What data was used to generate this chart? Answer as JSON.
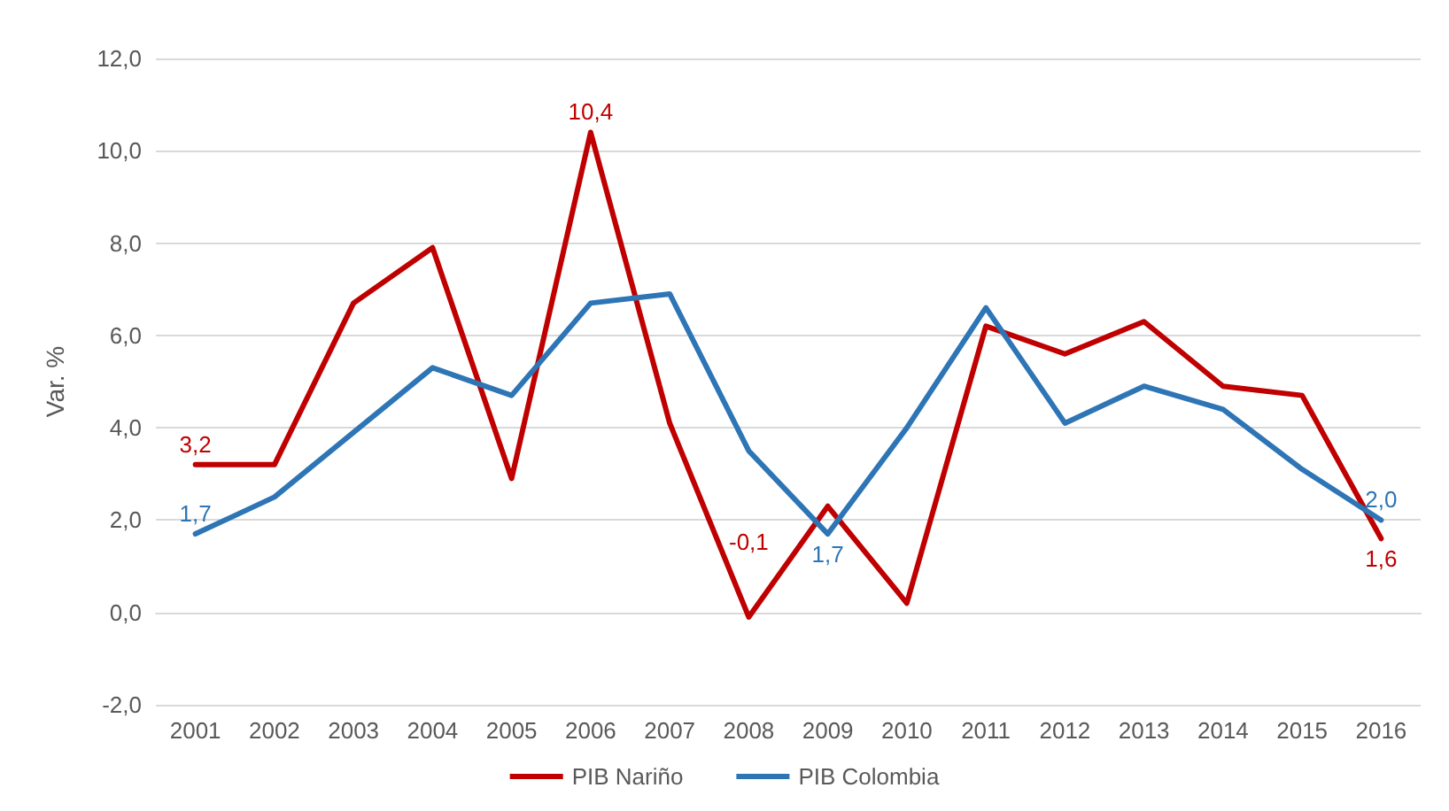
{
  "chart_data": {
    "type": "line",
    "ylabel": "Var. %",
    "categories": [
      "2001",
      "2002",
      "2003",
      "2004",
      "2005",
      "2006",
      "2007",
      "2008",
      "2009",
      "2010",
      "2011",
      "2012",
      "2013",
      "2014",
      "2015",
      "2016"
    ],
    "series": [
      {
        "name": "PIB Nariño",
        "color": "#c00000",
        "values": [
          3.2,
          3.2,
          6.7,
          7.9,
          2.9,
          10.4,
          4.1,
          -0.1,
          2.3,
          0.2,
          6.2,
          5.6,
          6.3,
          4.9,
          4.7,
          1.6
        ],
        "value_labels": [
          "3,2",
          null,
          null,
          null,
          null,
          "10,4",
          null,
          "-0,1",
          null,
          null,
          null,
          null,
          null,
          null,
          null,
          "1,6"
        ]
      },
      {
        "name": "PIB Colombia",
        "color": "#2e75b6",
        "values": [
          1.7,
          2.5,
          3.9,
          5.3,
          4.7,
          6.7,
          6.9,
          3.5,
          1.7,
          4.0,
          6.6,
          4.1,
          4.9,
          4.4,
          3.1,
          2.0
        ],
        "value_labels": [
          "1,7",
          null,
          null,
          null,
          null,
          null,
          null,
          null,
          "1,7",
          null,
          null,
          null,
          null,
          null,
          null,
          "2,0"
        ]
      }
    ],
    "ylim": [
      -2,
      12
    ],
    "yticks": [
      {
        "value": -2,
        "label": "-2,0"
      },
      {
        "value": 0,
        "label": "0,0"
      },
      {
        "value": 2,
        "label": "2,0"
      },
      {
        "value": 4,
        "label": "4,0"
      },
      {
        "value": 6,
        "label": "6,0"
      },
      {
        "value": 8,
        "label": "8,0"
      },
      {
        "value": 10,
        "label": "10,0"
      },
      {
        "value": 12,
        "label": "12,0"
      }
    ],
    "grid": "y",
    "legend": "bottom",
    "marker": "none",
    "line_style": "solid"
  }
}
